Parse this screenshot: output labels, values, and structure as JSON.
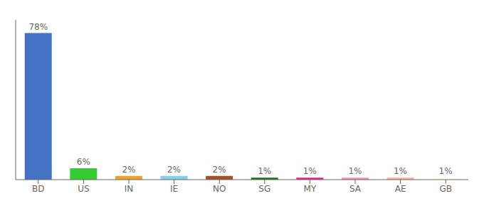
{
  "chart_data": {
    "type": "bar",
    "categories": [
      "BD",
      "US",
      "IN",
      "IE",
      "NO",
      "SG",
      "MY",
      "SA",
      "AE",
      "GB"
    ],
    "values": [
      78,
      6,
      2,
      2,
      2,
      1,
      1,
      1,
      1,
      1
    ],
    "value_labels": [
      "78%",
      "6%",
      "2%",
      "2%",
      "2%",
      "1%",
      "1%",
      "1%",
      "1%",
      "1%"
    ],
    "colors": [
      "#4472C4",
      "#33CC33",
      "#F0A030",
      "#87CEEB",
      "#A0522D",
      "#1A6B1A",
      "#E91E8C",
      "#F48FB1",
      "#FFAB91",
      "#FFFDE7"
    ],
    "ylim": [
      0,
      85
    ],
    "yticks": [],
    "grid": false,
    "data_labels": true,
    "tick_labels": "x"
  }
}
